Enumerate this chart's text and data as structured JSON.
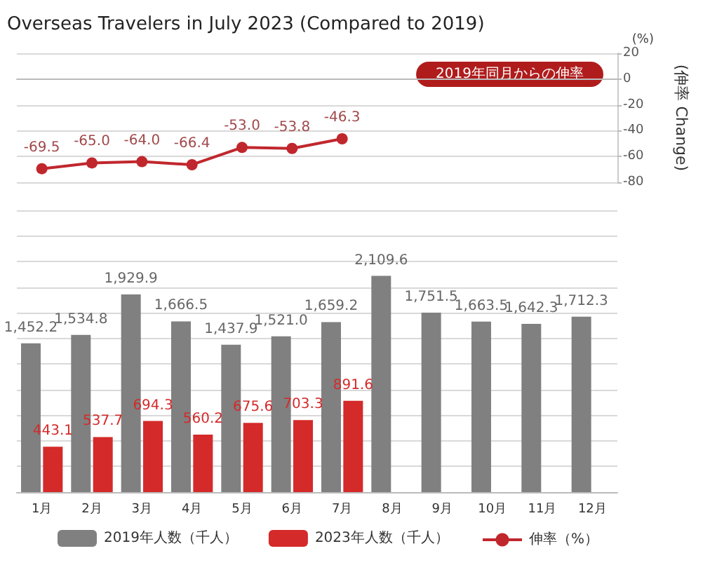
{
  "chart_data": [
    {
      "type": "line",
      "title": "Overseas Travelers in July 2023 (Compared to 2019)",
      "categories": [
        null,
        null,
        null,
        null,
        null,
        null,
        null,
        null,
        null,
        null,
        null,
        null
      ],
      "series": [
        {
          "name": "伸率（%）",
          "color": "#c0272d",
          "values": [
            -69.5,
            -65.0,
            -64.0,
            -66.4,
            -53.0,
            -53.8,
            -46.3,
            null,
            null,
            null,
            null,
            null
          ],
          "value_labels": [
            "-69.5",
            "-65.0",
            "-64.0",
            "-66.4",
            "-53.0",
            "-53.8",
            "-46.3",
            null,
            null,
            null,
            null,
            null
          ]
        }
      ],
      "ylim": [
        -80,
        20
      ],
      "yticks": [
        -80,
        -60,
        -40,
        -20,
        0,
        20
      ],
      "ylabel": "(伸率 Change)",
      "annotations": [
        "(%)",
        "2019年同月からの伸率"
      ],
      "tick_labels": "y",
      "grid": "y",
      "legend": "bottom",
      "marker": "circle",
      "line_style": "solid"
    },
    {
      "type": "bar",
      "categories": [
        "1月",
        "2月",
        "3月",
        "4月",
        "5月",
        "6月",
        "7月",
        "8月",
        "9月",
        "10月",
        "11月",
        "12月"
      ],
      "series": [
        {
          "name": "2019年人数（千人）",
          "color": "#808080",
          "values": [
            1452.2,
            1534.8,
            1929.9,
            1666.5,
            1437.9,
            1521.0,
            1659.2,
            2109.6,
            1751.5,
            1663.5,
            1642.3,
            1712.3
          ],
          "value_labels": [
            "1,452.2",
            "1,534.8",
            "1,929.9",
            "1,666.5",
            "1,437.9",
            "1,521.0",
            "1,659.2",
            "2,109.6",
            "1,751.5",
            "1,663.5",
            "1,642.3",
            "1,712.3"
          ]
        },
        {
          "name": "2023年人数（千人）",
          "color": "#d42a2a",
          "values": [
            443.1,
            537.7,
            694.3,
            560.2,
            675.6,
            703.3,
            891.6,
            null,
            null,
            null,
            null,
            null
          ],
          "value_labels": [
            "443.1",
            "537.7",
            "694.3",
            "560.2",
            "675.6",
            "703.3",
            "891.6",
            null,
            null,
            null,
            null,
            null
          ]
        }
      ],
      "ylim": [
        0,
        2750
      ],
      "yticks": [
        {
          "value": 0,
          "label": null
        },
        {
          "value": 250,
          "label": null
        },
        {
          "value": 500,
          "label": null
        },
        {
          "value": 750,
          "label": null
        },
        {
          "value": 1000,
          "label": null
        },
        {
          "value": 1250,
          "label": null
        },
        {
          "value": 1500,
          "label": null
        },
        {
          "value": 1750,
          "label": null
        },
        {
          "value": 2000,
          "label": null
        },
        {
          "value": 2250,
          "label": null
        },
        {
          "value": 2500,
          "label": null
        },
        {
          "value": 2750,
          "label": null
        }
      ],
      "tick_labels": "x",
      "grid": "y",
      "legend": "bottom"
    }
  ]
}
